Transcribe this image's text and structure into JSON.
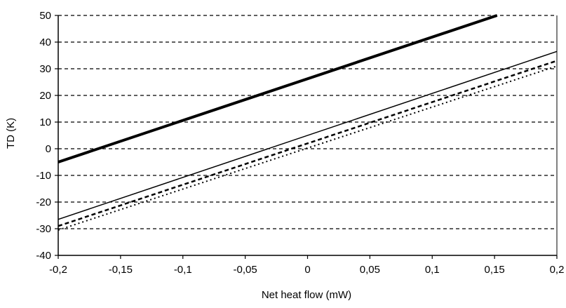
{
  "chart_data": {
    "type": "line",
    "title": "",
    "xlabel": "Net heat flow (mW)",
    "ylabel": "TD (K)",
    "xlim": [
      -0.2,
      0.2
    ],
    "ylim": [
      -40,
      50
    ],
    "x_ticks": [
      -0.2,
      -0.15,
      -0.1,
      -0.05,
      0,
      0.05,
      0.1,
      0.15,
      0.2
    ],
    "x_tick_labels": [
      "-0,2",
      "-0,15",
      "-0,1",
      "-0,05",
      "0",
      "0,05",
      "0,1",
      "0,15",
      "0,2"
    ],
    "y_ticks": [
      -40,
      -30,
      -20,
      -10,
      0,
      10,
      20,
      30,
      40,
      50
    ],
    "y_tick_labels": [
      "-40",
      "-30",
      "-20",
      "-10",
      "0",
      "10",
      "20",
      "30",
      "40",
      "50"
    ],
    "grid": "horizontal dashed",
    "legend": "none",
    "series": [
      {
        "style": "thick solid",
        "color": "#000000",
        "x": [
          -0.2,
          0.152
        ],
        "y": [
          -5,
          50
        ]
      },
      {
        "style": "thin solid",
        "color": "#000000",
        "x": [
          -0.2,
          0.2
        ],
        "y": [
          -26.5,
          36.5
        ]
      },
      {
        "style": "dashed",
        "color": "#000000",
        "x": [
          -0.2,
          0.2
        ],
        "y": [
          -29,
          33
        ]
      },
      {
        "style": "dotted",
        "color": "#000000",
        "x": [
          -0.2,
          0.2
        ],
        "y": [
          -30.5,
          31
        ]
      }
    ]
  }
}
